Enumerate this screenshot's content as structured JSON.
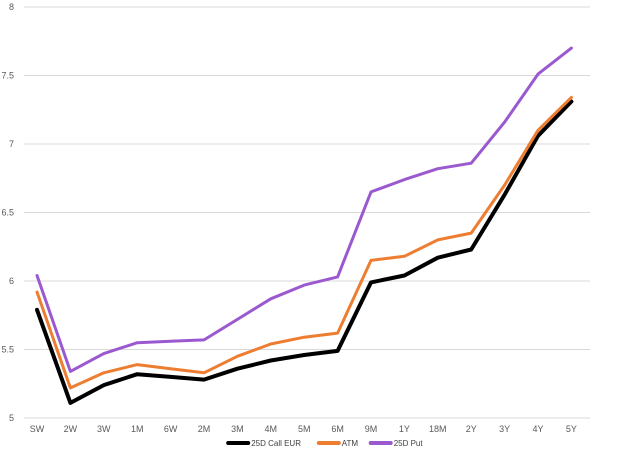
{
  "chart_data": {
    "type": "line",
    "title": "",
    "xlabel": "",
    "ylabel": "",
    "ylim": [
      5,
      8
    ],
    "yticks": [
      "5",
      "5.5",
      "6",
      "6.5",
      "7",
      "7.5",
      "8"
    ],
    "ytick_values": [
      5,
      5.5,
      6,
      6.5,
      7,
      7.5,
      8
    ],
    "grid": true,
    "legend_position": "bottom",
    "categories": [
      "SW",
      "2W",
      "3W",
      "1M",
      "6W",
      "2M",
      "3M",
      "4M",
      "5M",
      "6M",
      "9M",
      "1Y",
      "18M",
      "2Y",
      "3Y",
      "4Y",
      "5Y"
    ],
    "series": [
      {
        "name": "25D Call EUR",
        "color": "#000000",
        "values": [
          5.79,
          5.11,
          5.24,
          5.32,
          5.3,
          5.28,
          5.36,
          5.42,
          5.46,
          5.49,
          5.99,
          6.04,
          6.17,
          6.23,
          6.63,
          7.06,
          7.31
        ]
      },
      {
        "name": "ATM",
        "color": "#ED7D31",
        "values": [
          5.92,
          5.22,
          5.33,
          5.39,
          5.36,
          5.33,
          5.45,
          5.54,
          5.59,
          5.62,
          6.15,
          6.18,
          6.3,
          6.35,
          6.7,
          7.1,
          7.34
        ]
      },
      {
        "name": "25D Put",
        "color": "#9B59D0",
        "values": [
          6.04,
          5.34,
          5.47,
          5.55,
          5.56,
          5.57,
          5.72,
          5.87,
          5.97,
          6.03,
          6.65,
          6.74,
          6.82,
          6.86,
          7.16,
          7.51,
          7.7
        ]
      }
    ]
  }
}
